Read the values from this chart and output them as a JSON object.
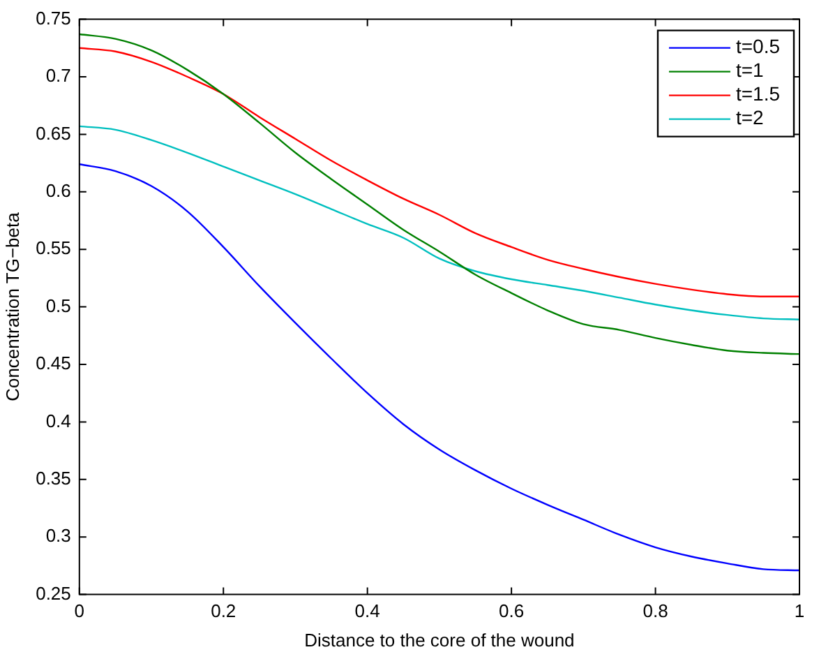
{
  "chart_data": {
    "type": "line",
    "xlabel": "Distance to the core of the wound",
    "ylabel": "Concentration TG−beta",
    "x": [
      0,
      0.05,
      0.1,
      0.15,
      0.2,
      0.25,
      0.3,
      0.35,
      0.4,
      0.45,
      0.5,
      0.55,
      0.6,
      0.65,
      0.7,
      0.75,
      0.8,
      0.85,
      0.9,
      0.95,
      1
    ],
    "series": [
      {
        "name": "t=0.5",
        "color": "#0000ff",
        "values": [
          0.624,
          0.618,
          0.605,
          0.583,
          0.552,
          0.518,
          0.486,
          0.455,
          0.425,
          0.398,
          0.376,
          0.358,
          0.342,
          0.328,
          0.315,
          0.302,
          0.291,
          0.283,
          0.277,
          0.272,
          0.271
        ]
      },
      {
        "name": "t=1",
        "color": "#008000",
        "values": [
          0.737,
          0.733,
          0.723,
          0.706,
          0.685,
          0.66,
          0.634,
          0.611,
          0.589,
          0.567,
          0.548,
          0.528,
          0.512,
          0.497,
          0.485,
          0.48,
          0.473,
          0.467,
          0.462,
          0.46,
          0.459
        ]
      },
      {
        "name": "t=1.5",
        "color": "#ff0000",
        "values": [
          0.725,
          0.722,
          0.713,
          0.7,
          0.685,
          0.665,
          0.646,
          0.627,
          0.61,
          0.594,
          0.58,
          0.564,
          0.552,
          0.541,
          0.533,
          0.526,
          0.52,
          0.515,
          0.511,
          0.509,
          0.509
        ]
      },
      {
        "name": "t=2",
        "color": "#00bfbf",
        "values": [
          0.657,
          0.654,
          0.645,
          0.634,
          0.622,
          0.61,
          0.598,
          0.585,
          0.572,
          0.56,
          0.542,
          0.531,
          0.524,
          0.519,
          0.514,
          0.508,
          0.502,
          0.497,
          0.493,
          0.49,
          0.489
        ]
      }
    ],
    "xlim": [
      0,
      1
    ],
    "xticks": [
      0,
      0.2,
      0.4,
      0.6,
      0.8,
      1
    ],
    "ylim": [
      0.25,
      0.75
    ],
    "yticks": [
      0.25,
      0.3,
      0.35,
      0.4,
      0.45,
      0.5,
      0.55,
      0.6,
      0.65,
      0.7,
      0.75
    ],
    "grid": false,
    "legend": "top right",
    "marker": "none",
    "line_style": "solid"
  }
}
